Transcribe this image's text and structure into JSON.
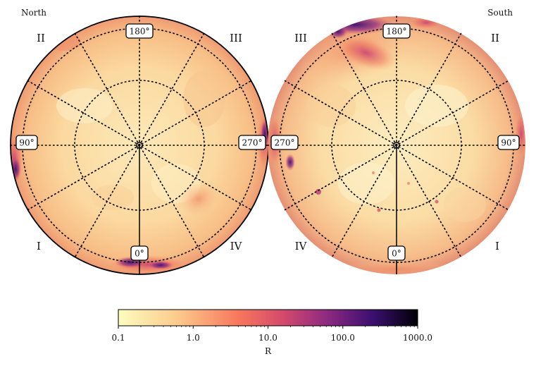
{
  "chart_data": [
    {
      "type": "heatmap",
      "hemisphere": "North",
      "title": "North",
      "projection": "polar",
      "longitude_labels": [
        "180°",
        "90°",
        "270°",
        "0°"
      ],
      "quadrant_labels": [
        "II",
        "III",
        "I",
        "IV"
      ],
      "grid": true,
      "features": [
        {
          "description": "bright auroral patch near 0° at low latitude",
          "intensity": 300
        },
        {
          "description": "enhanced emission on 90° limb",
          "intensity": 80
        },
        {
          "description": "enhanced emission on 270° limb",
          "intensity": 60
        },
        {
          "description": "oval patch in quadrant IV",
          "intensity": 12
        }
      ]
    },
    {
      "type": "heatmap",
      "hemisphere": "South",
      "title": "South",
      "projection": "polar",
      "longitude_labels": [
        "180°",
        "270°",
        "90°",
        "0°"
      ],
      "quadrant_labels": [
        "III",
        "II",
        "IV",
        "I"
      ],
      "grid": true,
      "features": [
        {
          "description": "extended bright emission near 180° in quadrant III",
          "intensity": 200
        },
        {
          "description": "dark emission on 270° limb",
          "intensity": 150
        },
        {
          "description": "small spots in quadrant IV",
          "intensity": 30
        }
      ]
    }
  ],
  "colorbar": {
    "label": "R",
    "scale": "log",
    "min": 0.1,
    "max": 1000.0,
    "ticks": [
      0.1,
      1.0,
      10.0,
      100.0,
      1000.0
    ],
    "tick_labels": [
      "0.1",
      "1.0",
      "10.0",
      "100.0",
      "1000.0"
    ],
    "colormap": "magma_r",
    "colors": [
      "#fcfdbf",
      "#feb078",
      "#f1605d",
      "#b73779",
      "#721f81",
      "#2c115f",
      "#000004"
    ]
  },
  "panels": {
    "north": {
      "title": "North",
      "q_top_left": "II",
      "q_top_right": "III",
      "q_bottom_left": "I",
      "q_bottom_right": "IV",
      "lon_top": "180°",
      "lon_left": "90°",
      "lon_right": "270°",
      "lon_bottom": "0°"
    },
    "south": {
      "title": "South",
      "q_top_left": "III",
      "q_top_right": "II",
      "q_bottom_left": "IV",
      "q_bottom_right": "I",
      "lon_top": "180°",
      "lon_left": "270°",
      "lon_right": "90°",
      "lon_bottom": "0°"
    }
  }
}
